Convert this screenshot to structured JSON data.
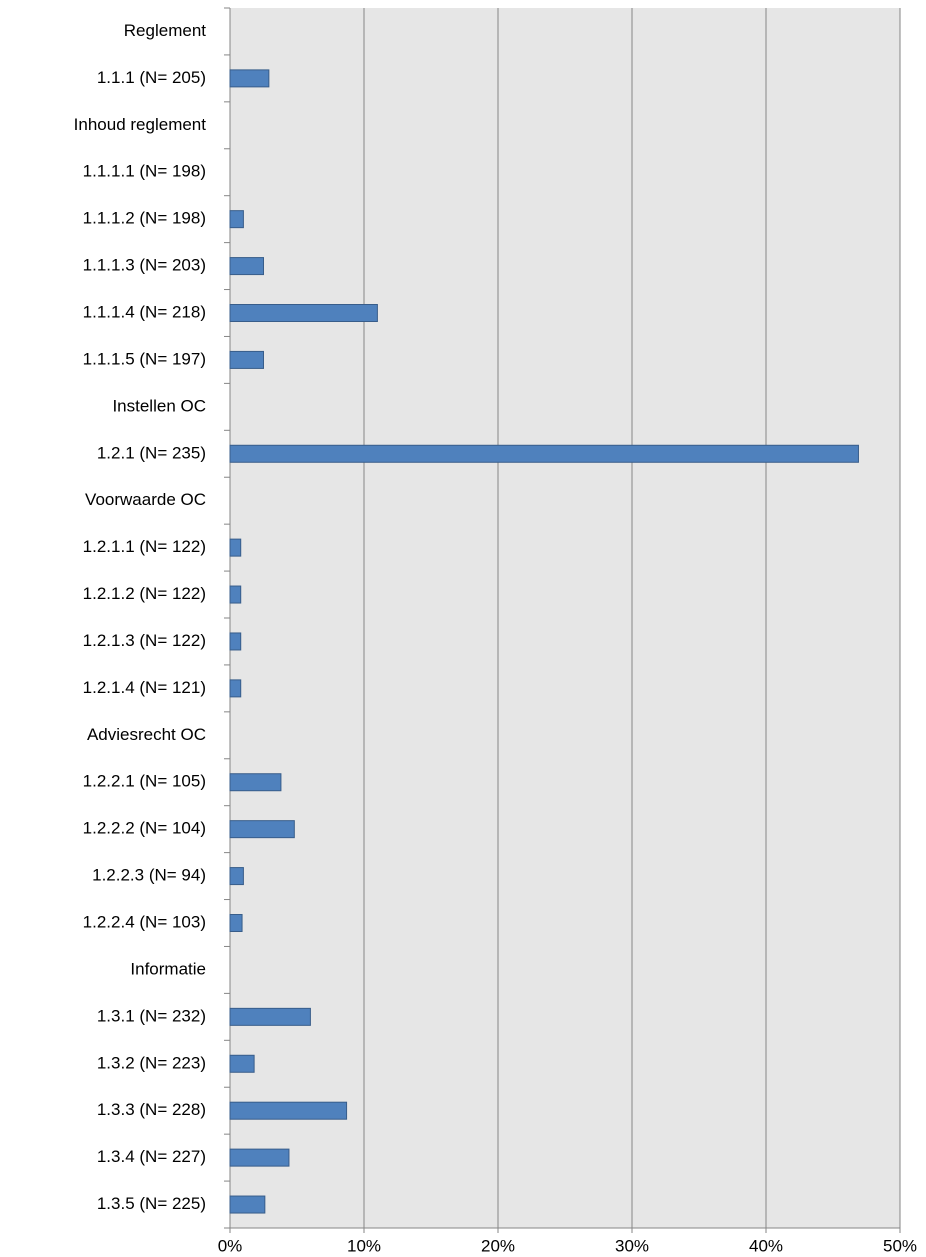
{
  "chart_data": {
    "type": "barh",
    "categories": [
      "Reglement",
      "1.1.1 (N= 205)",
      "Inhoud reglement",
      "1.1.1.1 (N= 198)",
      "1.1.1.2 (N= 198)",
      "1.1.1.3 (N= 203)",
      "1.1.1.4 (N= 218)",
      "1.1.1.5 (N= 197)",
      "Instellen OC",
      "1.2.1 (N= 235)",
      "Voorwaarde OC",
      "1.2.1.1 (N= 122)",
      "1.2.1.2 (N= 122)",
      "1.2.1.3 (N= 122)",
      "1.2.1.4 (N= 121)",
      "Adviesrecht OC",
      "1.2.2.1 (N= 105)",
      "1.2.2.2 (N= 104)",
      "1.2.2.3 (N= 94)",
      "1.2.2.4 (N= 103)",
      "Informatie",
      "1.3.1 (N= 232)",
      "1.3.2 (N= 223)",
      "1.3.3 (N= 228)",
      "1.3.4 (N= 227)",
      "1.3.5 (N= 225)"
    ],
    "values": [
      null,
      2.9,
      null,
      0,
      1.0,
      2.5,
      11.0,
      2.5,
      null,
      46.9,
      null,
      0.8,
      0.8,
      0.8,
      0.8,
      null,
      3.8,
      4.8,
      1.0,
      0.9,
      null,
      6.0,
      1.8,
      8.7,
      4.4,
      2.6
    ],
    "color": "#4f81bd",
    "xlim": [
      0,
      50
    ],
    "xticks": [
      {
        "value": 0,
        "label": "0%"
      },
      {
        "value": 10,
        "label": "10%"
      },
      {
        "value": 20,
        "label": "20%"
      },
      {
        "value": 30,
        "label": "30%"
      },
      {
        "value": 40,
        "label": "40%"
      },
      {
        "value": 50,
        "label": "50%"
      }
    ],
    "grid": true
  }
}
